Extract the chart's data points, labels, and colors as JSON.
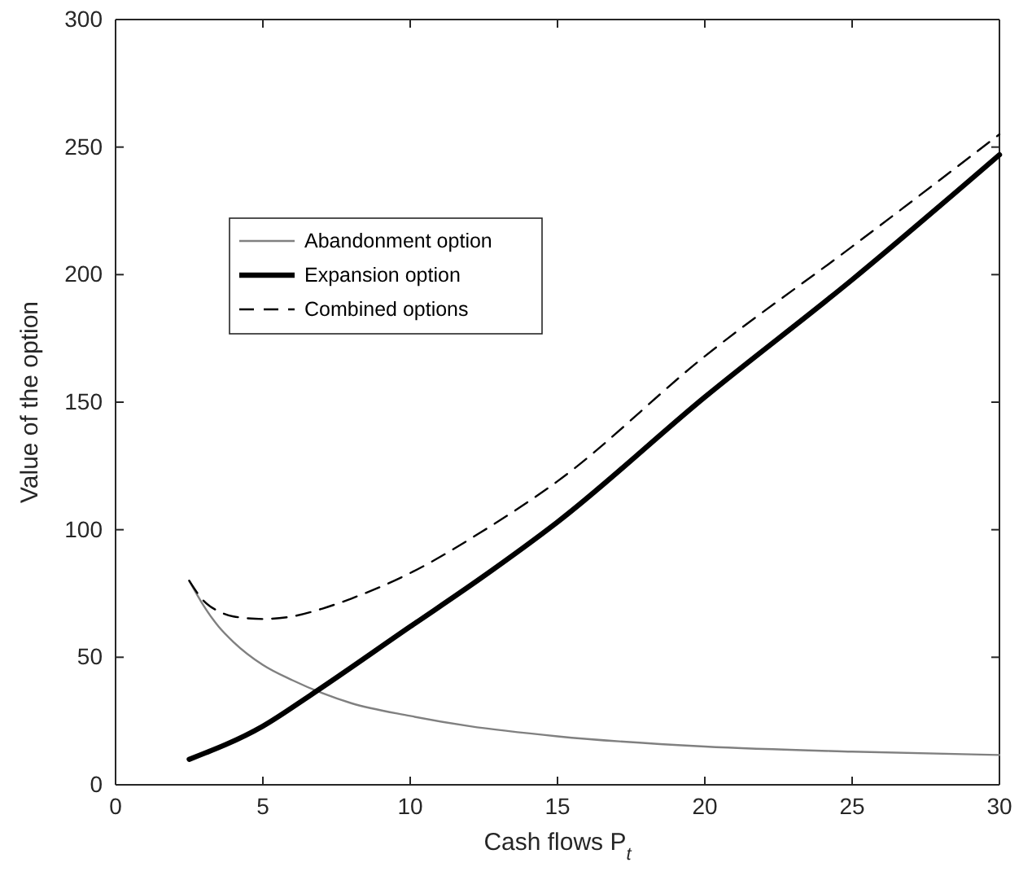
{
  "chart_data": {
    "type": "line",
    "xlabel": "Cash flows  P$_{t}$",
    "ylabel": "Value of the option",
    "xlim": [
      0,
      30
    ],
    "xticks": [
      0,
      5,
      10,
      15,
      20,
      25,
      30
    ],
    "ylim": [
      0,
      300
    ],
    "yticks": [
      0,
      50,
      100,
      150,
      200,
      250,
      300
    ],
    "grid": false,
    "legend": "top left",
    "marker": "none",
    "series": [
      {
        "name": "Abandonment option",
        "color": "#808080",
        "line_style": "solid",
        "x": [
          2.5,
          3,
          3.5,
          4,
          5,
          6,
          7,
          8,
          10,
          12,
          15,
          20,
          25,
          30
        ],
        "values": [
          80,
          70,
          62,
          56,
          47,
          41,
          36,
          32,
          27,
          23,
          19,
          15,
          13,
          11.7
        ]
      },
      {
        "name": "Expansion option",
        "color": "#000000",
        "line_style": "solid",
        "x": [
          2.5,
          5,
          6.6,
          10,
          12.4,
          15,
          20,
          25,
          30
        ],
        "values": [
          10,
          23,
          35,
          62,
          81,
          103,
          152,
          198,
          247
        ]
      },
      {
        "name": "Combined options",
        "color": "#000000",
        "line_style": "dashed",
        "x": [
          2.5,
          3,
          3.5,
          4,
          5,
          6,
          7,
          8,
          10,
          12.4,
          15,
          20,
          25,
          30
        ],
        "values": [
          80,
          72,
          68,
          66,
          65,
          66,
          69,
          73,
          83,
          99,
          119,
          168,
          211,
          255
        ]
      }
    ]
  }
}
